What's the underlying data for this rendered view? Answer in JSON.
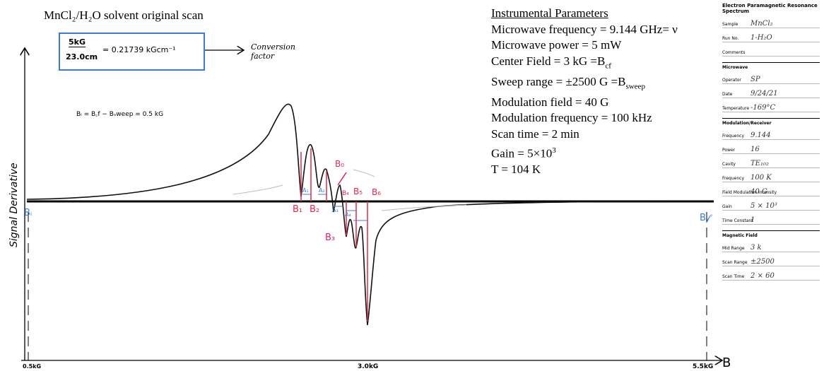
{
  "title": "MnCl₂/H₂O solvent original scan",
  "conversion": {
    "numerator": "5kG",
    "denominator": "23.0cm",
    "result": "= 0.21739 kGcm⁻¹",
    "note": "Conversion factor"
  },
  "initial_field": {
    "text": "Bᵢ = B꜀f − Bₛweep = 0.5 kG"
  },
  "parameters": {
    "heading": "Instrumental Parameters",
    "lines": [
      {
        "text": "Microwave frequency = 9.144 GHz",
        "symbol": "= ν"
      },
      {
        "text": "Microwave power = 5 mW",
        "symbol": null
      },
      {
        "text": "Center Field = 3 kG =B",
        "symbol": "cf"
      },
      {
        "text": "Sweep range = ±2500 G =B",
        "symbol": "sweep"
      },
      {
        "text": "Modulation field = 40 G",
        "symbol": null
      },
      {
        "text": "Modulation frequency = 100 kHz",
        "symbol": null
      },
      {
        "text": "Scan time = 2 min",
        "symbol": null
      },
      {
        "text": "Gain = 5×10",
        "symbol": "3"
      },
      {
        "text": "T = 104 K",
        "symbol": null
      }
    ]
  },
  "axes": {
    "y_label": "Signal Derivative",
    "x_label": "B",
    "x_left": "0.5kG",
    "x_mid": "3.0kG",
    "x_right": "5.5kG",
    "left_marker": "Bᵢ",
    "right_marker": "B𝒻"
  },
  "peak_labels": [
    "B₁",
    "B₂",
    "B₃",
    "B₀",
    "B₅",
    "B₆",
    "A₁",
    "A₂",
    "A₃",
    "A₄",
    "B₄"
  ],
  "form": {
    "title": "Electron Paramagnetic Resonance Spectrum",
    "fields": [
      {
        "label": "Sample",
        "value": "MnCl₂"
      },
      {
        "label": "Run No.",
        "value": "1-H₂O"
      },
      {
        "label": "Comments",
        "value": null
      },
      {
        "label": "Operator",
        "value": "SP"
      },
      {
        "label": "Date",
        "value": "9/24/21"
      },
      {
        "label": "Temperature",
        "value": "-169°C"
      },
      {
        "label": "Frequency",
        "value": "9.144"
      },
      {
        "label": "Power",
        "value": "16"
      },
      {
        "label": "Cavity",
        "value": "TE₁₀₂"
      },
      {
        "label": "Frequency",
        "value": "100 K"
      },
      {
        "label": "Field Modulation Intensity",
        "value": "40 G"
      },
      {
        "label": "Gain",
        "value": "5 × 10³"
      },
      {
        "label": "Time Constant",
        "value": "1"
      },
      {
        "label": "Mid Range",
        "value": "3 k"
      },
      {
        "label": "Scan Range",
        "value": "±2500"
      },
      {
        "label": "Scan Time",
        "value": "2 × 60"
      }
    ],
    "sections": [
      "Microwave",
      "Modulation/Receiver",
      "Magnetic Field"
    ]
  }
}
